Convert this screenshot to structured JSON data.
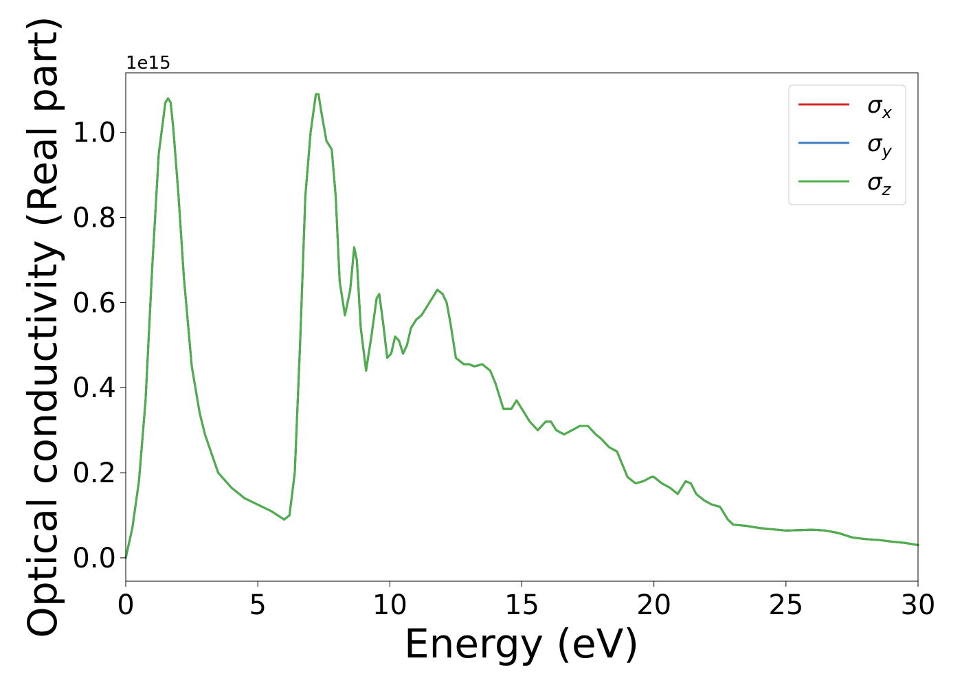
{
  "chart_data": {
    "type": "line",
    "xlabel": "Energy (eV)",
    "ylabel": "Optical conductivity (Real part)",
    "y_offset_label": "1e15",
    "xlim": [
      0,
      30
    ],
    "ylim": [
      -0.055,
      1.14
    ],
    "x_ticks": [
      0,
      5,
      10,
      15,
      20,
      25,
      30
    ],
    "x_tick_labels": [
      "0",
      "5",
      "10",
      "15",
      "20",
      "25",
      "30"
    ],
    "y_ticks": [
      0.0,
      0.2,
      0.4,
      0.6,
      0.8,
      1.0
    ],
    "y_tick_labels": [
      "0.0",
      "0.2",
      "0.4",
      "0.6",
      "0.8",
      "1.0"
    ],
    "grid": false,
    "legend_position": "top-right",
    "legend": [
      {
        "symbol": "σ",
        "subscript": "x",
        "color": "#d62728"
      },
      {
        "symbol": "σ",
        "subscript": "y",
        "color": "#3a7dbf"
      },
      {
        "symbol": "σ",
        "subscript": "z",
        "color": "#4daf4a"
      }
    ],
    "x": [
      0,
      0.25,
      0.5,
      0.75,
      1.0,
      1.25,
      1.5,
      1.6,
      1.7,
      1.8,
      2.0,
      2.2,
      2.5,
      2.8,
      3.0,
      3.5,
      4.0,
      4.5,
      5.0,
      5.5,
      6.0,
      6.2,
      6.4,
      6.6,
      6.8,
      7.0,
      7.2,
      7.3,
      7.4,
      7.6,
      7.8,
      7.95,
      8.1,
      8.3,
      8.5,
      8.65,
      8.75,
      8.9,
      9.1,
      9.3,
      9.5,
      9.6,
      9.75,
      9.9,
      10.05,
      10.2,
      10.35,
      10.5,
      10.65,
      10.8,
      11.0,
      11.2,
      11.5,
      11.8,
      12.0,
      12.15,
      12.3,
      12.5,
      12.8,
      13.0,
      13.2,
      13.5,
      13.8,
      14.0,
      14.3,
      14.6,
      14.8,
      15.0,
      15.3,
      15.6,
      15.9,
      16.1,
      16.3,
      16.6,
      16.9,
      17.2,
      17.5,
      17.8,
      18.0,
      18.3,
      18.6,
      18.8,
      19.0,
      19.3,
      19.6,
      19.9,
      20.0,
      20.3,
      20.6,
      20.9,
      21.0,
      21.2,
      21.4,
      21.6,
      21.9,
      22.2,
      22.5,
      22.8,
      23.0,
      23.5,
      24.0,
      24.5,
      25.0,
      25.5,
      26.0,
      26.5,
      27.0,
      27.5,
      28.0,
      28.5,
      29.0,
      29.5,
      30.0
    ],
    "series": [
      {
        "name": "σx",
        "color": "#d62728",
        "values": [
          0.0,
          0.07,
          0.18,
          0.37,
          0.68,
          0.95,
          1.07,
          1.08,
          1.07,
          1.01,
          0.85,
          0.66,
          0.45,
          0.34,
          0.29,
          0.2,
          0.165,
          0.14,
          0.125,
          0.11,
          0.09,
          0.1,
          0.2,
          0.5,
          0.85,
          1.0,
          1.09,
          1.09,
          1.05,
          0.98,
          0.96,
          0.85,
          0.65,
          0.57,
          0.63,
          0.73,
          0.7,
          0.54,
          0.44,
          0.52,
          0.61,
          0.62,
          0.55,
          0.47,
          0.48,
          0.52,
          0.51,
          0.48,
          0.5,
          0.54,
          0.56,
          0.57,
          0.6,
          0.63,
          0.62,
          0.6,
          0.55,
          0.47,
          0.455,
          0.455,
          0.45,
          0.455,
          0.44,
          0.41,
          0.35,
          0.35,
          0.37,
          0.35,
          0.32,
          0.3,
          0.32,
          0.32,
          0.3,
          0.29,
          0.3,
          0.31,
          0.31,
          0.29,
          0.28,
          0.26,
          0.25,
          0.22,
          0.19,
          0.175,
          0.18,
          0.19,
          0.19,
          0.175,
          0.165,
          0.15,
          0.16,
          0.18,
          0.175,
          0.15,
          0.135,
          0.125,
          0.12,
          0.09,
          0.078,
          0.075,
          0.07,
          0.067,
          0.064,
          0.065,
          0.066,
          0.064,
          0.058,
          0.048,
          0.044,
          0.042,
          0.038,
          0.035,
          0.03
        ]
      },
      {
        "name": "σy",
        "color": "#3a7dbf",
        "values": [
          0.0,
          0.07,
          0.18,
          0.37,
          0.68,
          0.95,
          1.07,
          1.08,
          1.07,
          1.01,
          0.85,
          0.66,
          0.45,
          0.34,
          0.29,
          0.2,
          0.165,
          0.14,
          0.125,
          0.11,
          0.09,
          0.1,
          0.2,
          0.5,
          0.85,
          1.0,
          1.09,
          1.09,
          1.05,
          0.98,
          0.96,
          0.85,
          0.65,
          0.57,
          0.63,
          0.73,
          0.7,
          0.54,
          0.44,
          0.52,
          0.61,
          0.62,
          0.55,
          0.47,
          0.48,
          0.52,
          0.51,
          0.48,
          0.5,
          0.54,
          0.56,
          0.57,
          0.6,
          0.63,
          0.62,
          0.6,
          0.55,
          0.47,
          0.455,
          0.455,
          0.45,
          0.455,
          0.44,
          0.41,
          0.35,
          0.35,
          0.37,
          0.35,
          0.32,
          0.3,
          0.32,
          0.32,
          0.3,
          0.29,
          0.3,
          0.31,
          0.31,
          0.29,
          0.28,
          0.26,
          0.25,
          0.22,
          0.19,
          0.175,
          0.18,
          0.19,
          0.19,
          0.175,
          0.165,
          0.15,
          0.16,
          0.18,
          0.175,
          0.15,
          0.135,
          0.125,
          0.12,
          0.09,
          0.078,
          0.075,
          0.07,
          0.067,
          0.064,
          0.065,
          0.066,
          0.064,
          0.058,
          0.048,
          0.044,
          0.042,
          0.038,
          0.035,
          0.03
        ]
      },
      {
        "name": "σz",
        "color": "#4daf4a",
        "values": [
          0.0,
          0.07,
          0.18,
          0.37,
          0.68,
          0.95,
          1.07,
          1.08,
          1.07,
          1.01,
          0.85,
          0.66,
          0.45,
          0.34,
          0.29,
          0.2,
          0.165,
          0.14,
          0.125,
          0.11,
          0.09,
          0.1,
          0.2,
          0.5,
          0.85,
          1.0,
          1.09,
          1.09,
          1.05,
          0.98,
          0.96,
          0.85,
          0.65,
          0.57,
          0.63,
          0.73,
          0.7,
          0.54,
          0.44,
          0.52,
          0.61,
          0.62,
          0.55,
          0.47,
          0.48,
          0.52,
          0.51,
          0.48,
          0.5,
          0.54,
          0.56,
          0.57,
          0.6,
          0.63,
          0.62,
          0.6,
          0.55,
          0.47,
          0.455,
          0.455,
          0.45,
          0.455,
          0.44,
          0.41,
          0.35,
          0.35,
          0.37,
          0.35,
          0.32,
          0.3,
          0.32,
          0.32,
          0.3,
          0.29,
          0.3,
          0.31,
          0.31,
          0.29,
          0.28,
          0.26,
          0.25,
          0.22,
          0.19,
          0.175,
          0.18,
          0.19,
          0.19,
          0.175,
          0.165,
          0.15,
          0.16,
          0.18,
          0.175,
          0.15,
          0.135,
          0.125,
          0.12,
          0.09,
          0.078,
          0.075,
          0.07,
          0.067,
          0.064,
          0.065,
          0.066,
          0.064,
          0.058,
          0.048,
          0.044,
          0.042,
          0.038,
          0.035,
          0.03
        ]
      }
    ]
  }
}
